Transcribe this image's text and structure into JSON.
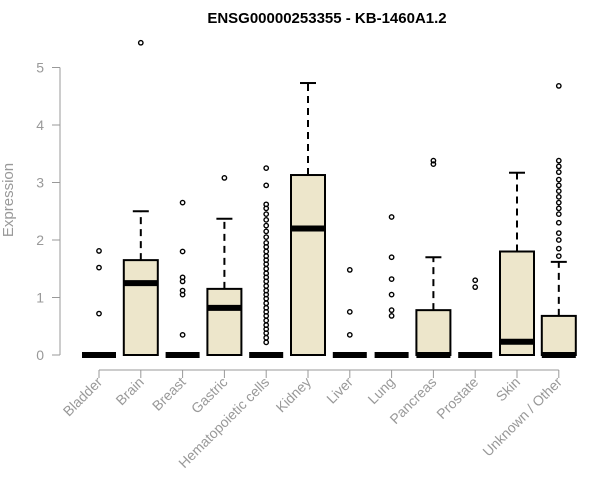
{
  "chart_data": {
    "type": "boxplot",
    "title": "ENSG00000253355 - KB-1460A1.2",
    "ylabel": "Expression",
    "ylim": [
      0,
      5
    ],
    "yticks": [
      0,
      1,
      2,
      3,
      4,
      5
    ],
    "box_fill": "#ede6cb",
    "median_color": "#000000",
    "categories": [
      "Bladder",
      "Brain",
      "Breast",
      "Gastric",
      "Hematopoietic cells",
      "Kidney",
      "Liver",
      "Lung",
      "Pancreas",
      "Prostate",
      "Skin",
      "Unknown / Other"
    ],
    "boxes": [
      {
        "q1": 0,
        "median": 0,
        "q3": 0,
        "whisker_low": 0,
        "whisker_high": 0,
        "outliers": [
          0.72,
          1.52,
          1.81
        ]
      },
      {
        "q1": 0,
        "median": 1.25,
        "q3": 1.65,
        "whisker_low": 0,
        "whisker_high": 2.5,
        "outliers": [
          5.43
        ]
      },
      {
        "q1": 0,
        "median": 0,
        "q3": 0,
        "whisker_low": 0,
        "whisker_high": 0,
        "outliers": [
          0.35,
          1.05,
          1.12,
          1.28,
          1.35,
          1.8,
          2.65
        ]
      },
      {
        "q1": 0,
        "median": 0.82,
        "q3": 1.15,
        "whisker_low": 0,
        "whisker_high": 2.37,
        "outliers": [
          3.08
        ]
      },
      {
        "q1": 0,
        "median": 0,
        "q3": 0,
        "whisker_low": 0,
        "whisker_high": 0,
        "outliers": [
          0.22,
          0.3,
          0.38,
          0.45,
          0.52,
          0.6,
          0.68,
          0.75,
          0.82,
          0.9,
          0.98,
          1.05,
          1.12,
          1.2,
          1.28,
          1.35,
          1.42,
          1.5,
          1.58,
          1.65,
          1.72,
          1.8,
          1.88,
          1.95,
          2.05,
          2.15,
          2.25,
          2.35,
          2.45,
          2.55,
          2.62,
          2.95,
          3.25
        ]
      },
      {
        "q1": 0,
        "median": 2.2,
        "q3": 3.13,
        "whisker_low": 0,
        "whisker_high": 4.73,
        "outliers": []
      },
      {
        "q1": 0,
        "median": 0,
        "q3": 0,
        "whisker_low": 0,
        "whisker_high": 0,
        "outliers": [
          0.35,
          0.75,
          1.48
        ]
      },
      {
        "q1": 0,
        "median": 0,
        "q3": 0,
        "whisker_low": 0,
        "whisker_high": 0,
        "outliers": [
          0.68,
          0.78,
          1.05,
          1.32,
          1.7,
          2.4
        ]
      },
      {
        "q1": 0,
        "median": 0,
        "q3": 0.78,
        "whisker_low": 0,
        "whisker_high": 1.7,
        "outliers": [
          3.32,
          3.38
        ]
      },
      {
        "q1": 0,
        "median": 0,
        "q3": 0,
        "whisker_low": 0,
        "whisker_high": 0,
        "outliers": [
          1.18,
          1.3
        ]
      },
      {
        "q1": 0,
        "median": 0.23,
        "q3": 1.8,
        "whisker_low": 0,
        "whisker_high": 3.17,
        "outliers": []
      },
      {
        "q1": 0,
        "median": 0,
        "q3": 0.68,
        "whisker_low": 0,
        "whisker_high": 1.62,
        "outliers": [
          1.72,
          1.85,
          2.0,
          2.12,
          2.3,
          2.45,
          2.55,
          2.65,
          2.75,
          2.85,
          2.95,
          3.05,
          3.18,
          3.28,
          3.38,
          4.68
        ]
      }
    ]
  }
}
